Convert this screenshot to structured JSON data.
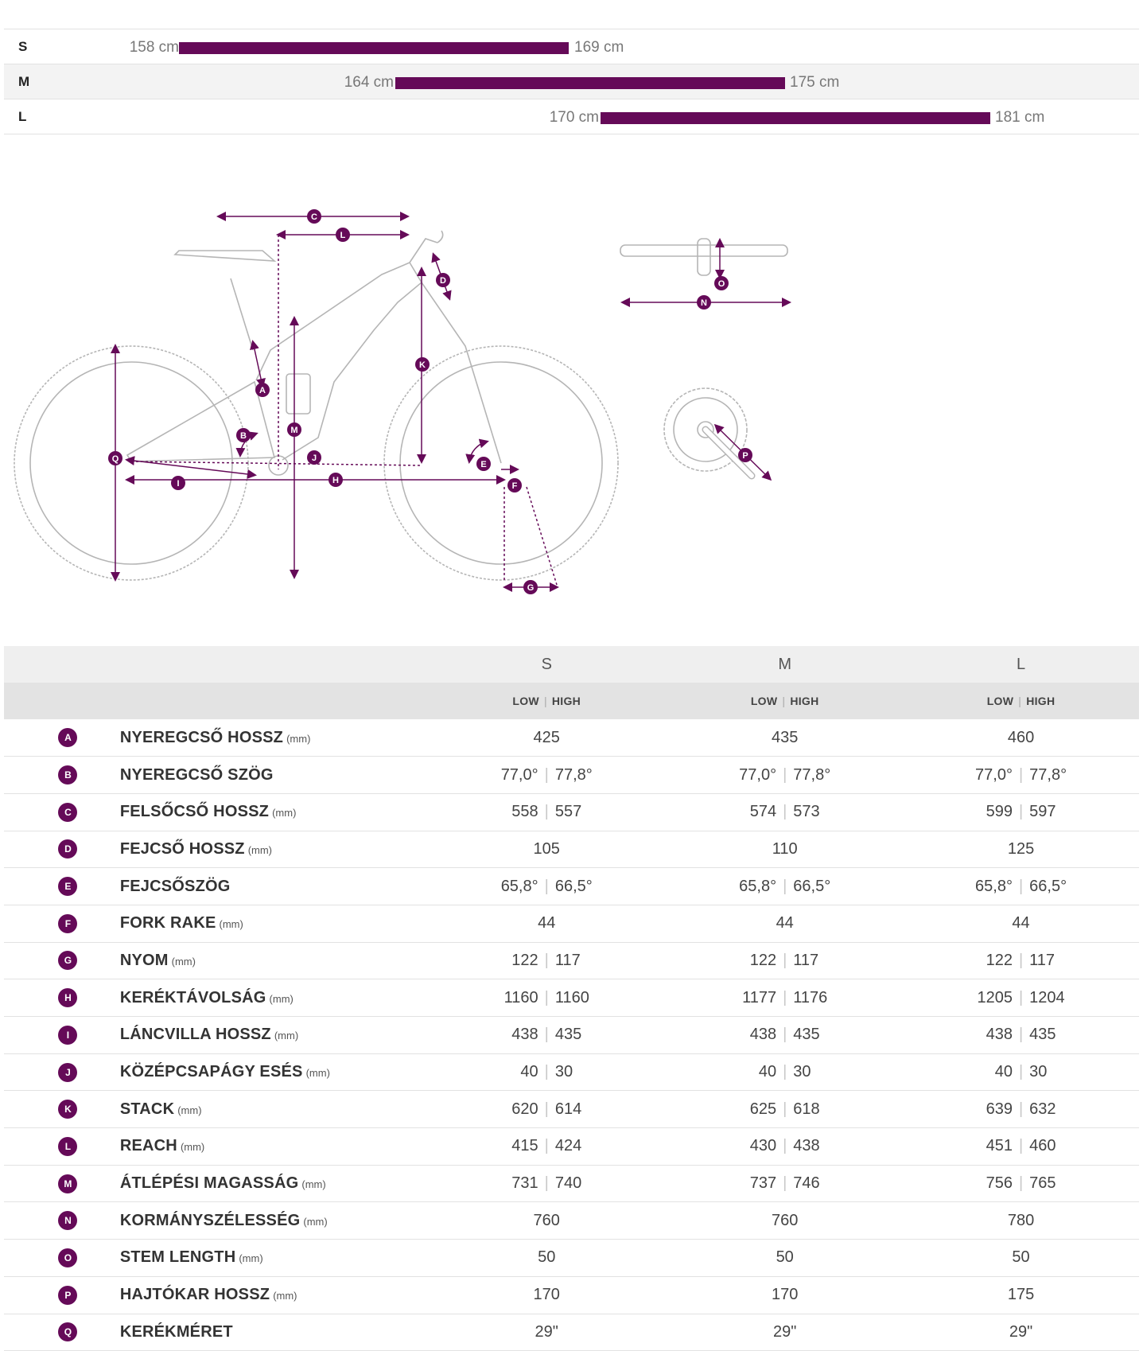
{
  "sizes": [
    {
      "letter": "S",
      "min": "158 cm",
      "max": "169 cm"
    },
    {
      "letter": "M",
      "min": "164 cm",
      "max": "175 cm"
    },
    {
      "letter": "L",
      "min": "170 cm",
      "max": "181 cm"
    }
  ],
  "accent_color": "#650a58",
  "diagram_labels": [
    "A",
    "B",
    "C",
    "D",
    "E",
    "F",
    "G",
    "H",
    "I",
    "J",
    "K",
    "L",
    "M",
    "N",
    "O",
    "P",
    "Q"
  ],
  "table": {
    "size_headers": [
      "S",
      "M",
      "L"
    ],
    "low_label": "LOW",
    "high_label": "HIGH",
    "rows": [
      {
        "id": "A",
        "name": "NYEREGCSŐ HOSSZ",
        "unit": "(mm)",
        "values": [
          [
            "425"
          ],
          [
            "435"
          ],
          [
            "460"
          ]
        ]
      },
      {
        "id": "B",
        "name": "NYEREGCSŐ SZÖG",
        "unit": "",
        "values": [
          [
            "77,0°",
            "77,8°"
          ],
          [
            "77,0°",
            "77,8°"
          ],
          [
            "77,0°",
            "77,8°"
          ]
        ]
      },
      {
        "id": "C",
        "name": "FELSŐCSŐ HOSSZ",
        "unit": "(mm)",
        "values": [
          [
            "558",
            "557"
          ],
          [
            "574",
            "573"
          ],
          [
            "599",
            "597"
          ]
        ]
      },
      {
        "id": "D",
        "name": "FEJCSŐ HOSSZ",
        "unit": "(mm)",
        "values": [
          [
            "105"
          ],
          [
            "110"
          ],
          [
            "125"
          ]
        ]
      },
      {
        "id": "E",
        "name": "FEJCSŐSZÖG",
        "unit": "",
        "values": [
          [
            "65,8°",
            "66,5°"
          ],
          [
            "65,8°",
            "66,5°"
          ],
          [
            "65,8°",
            "66,5°"
          ]
        ]
      },
      {
        "id": "F",
        "name": "FORK RAKE",
        "unit": "(mm)",
        "values": [
          [
            "44"
          ],
          [
            "44"
          ],
          [
            "44"
          ]
        ]
      },
      {
        "id": "G",
        "name": "NYOM",
        "unit": "(mm)",
        "values": [
          [
            "122",
            "117"
          ],
          [
            "122",
            "117"
          ],
          [
            "122",
            "117"
          ]
        ]
      },
      {
        "id": "H",
        "name": "KERÉKTÁVOLSÁG",
        "unit": "(mm)",
        "values": [
          [
            "1160",
            "1160"
          ],
          [
            "1177",
            "1176"
          ],
          [
            "1205",
            "1204"
          ]
        ]
      },
      {
        "id": "I",
        "name": "LÁNCVILLA HOSSZ",
        "unit": "(mm)",
        "values": [
          [
            "438",
            "435"
          ],
          [
            "438",
            "435"
          ],
          [
            "438",
            "435"
          ]
        ]
      },
      {
        "id": "J",
        "name": "KÖZÉPCSAPÁGY ESÉS",
        "unit": "(mm)",
        "values": [
          [
            "40",
            "30"
          ],
          [
            "40",
            "30"
          ],
          [
            "40",
            "30"
          ]
        ]
      },
      {
        "id": "K",
        "name": "STACK",
        "unit": "(mm)",
        "values": [
          [
            "620",
            "614"
          ],
          [
            "625",
            "618"
          ],
          [
            "639",
            "632"
          ]
        ]
      },
      {
        "id": "L",
        "name": "REACH",
        "unit": "(mm)",
        "values": [
          [
            "415",
            "424"
          ],
          [
            "430",
            "438"
          ],
          [
            "451",
            "460"
          ]
        ]
      },
      {
        "id": "M",
        "name": "ÁTLÉPÉSI MAGASSÁG",
        "unit": "(mm)",
        "values": [
          [
            "731",
            "740"
          ],
          [
            "737",
            "746"
          ],
          [
            "756",
            "765"
          ]
        ]
      },
      {
        "id": "N",
        "name": "KORMÁNYSZÉLESSÉG",
        "unit": "(mm)",
        "values": [
          [
            "760"
          ],
          [
            "760"
          ],
          [
            "780"
          ]
        ]
      },
      {
        "id": "O",
        "name": "STEM LENGTH",
        "unit": "(mm)",
        "values": [
          [
            "50"
          ],
          [
            "50"
          ],
          [
            "50"
          ]
        ]
      },
      {
        "id": "P",
        "name": "HAJTÓKAR HOSSZ",
        "unit": "(mm)",
        "values": [
          [
            "170"
          ],
          [
            "170"
          ],
          [
            "175"
          ]
        ]
      },
      {
        "id": "Q",
        "name": "KERÉKMÉRET",
        "unit": "",
        "values": [
          [
            "29\""
          ],
          [
            "29\""
          ],
          [
            "29\""
          ]
        ]
      }
    ]
  }
}
